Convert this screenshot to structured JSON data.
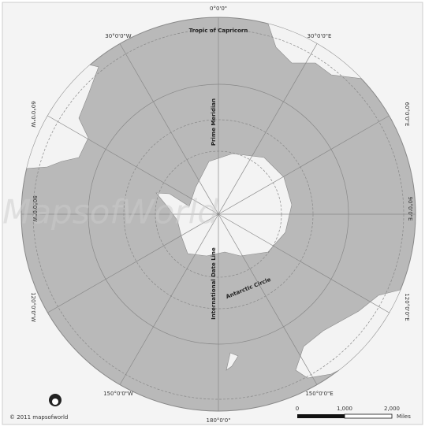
{
  "graticule": {
    "top": "0°0'0\"",
    "bottom": "180°0'0\"",
    "left": "90°0'0\"W",
    "right": "90°0'0\"E",
    "top_left": "30°0'0\"W",
    "top_right": "30°0'0\"E",
    "upper_left": "60°0'0\"W",
    "upper_right": "60°0'0\"E",
    "lower_left": "120°0'0\"W",
    "lower_right": "120°0'0\"E",
    "bottom_left": "150°0'0\"W",
    "bottom_right": "150°0'0\"E"
  },
  "lines": {
    "tropic": "Tropic of Capricorn",
    "prime": "Prime Meridian",
    "dateline": "International Date Line",
    "antarctic": "Antarctic Circle"
  },
  "watermark": "MapsofWorld",
  "copyright": "© 2011 mapsofworld",
  "scale": {
    "ticks": [
      "0",
      "1,000",
      "2,000"
    ],
    "unit": "Miles"
  }
}
